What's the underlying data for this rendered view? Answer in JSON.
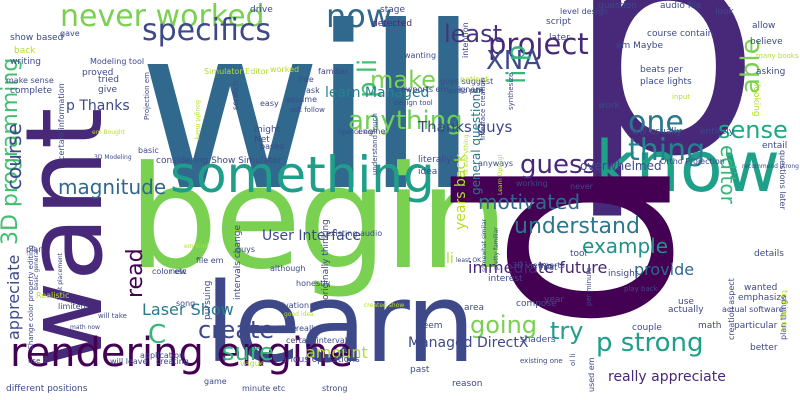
{
  "palette": [
    "#440154",
    "#482878",
    "#3e4989",
    "#31688e",
    "#26828e",
    "#1f9e89",
    "#35b779",
    "#6ece58",
    "#b5de2b",
    "#fde725"
  ],
  "words": [
    {
      "text": "will",
      "color": "#31688e"
    },
    {
      "text": "p",
      "color": "#482878"
    },
    {
      "text": "begin",
      "color": "#7ad151"
    },
    {
      "text": "want",
      "color": "#482878"
    },
    {
      "text": "learn",
      "color": "#3e4989"
    },
    {
      "text": "know",
      "color": "#1fa088"
    },
    {
      "text": "something",
      "color": "#1f9e89"
    },
    {
      "text": "p",
      "color": "#440154"
    },
    {
      "text": "rendering engine",
      "color": "#440154"
    },
    {
      "text": "never worked",
      "color": "#7ad151"
    },
    {
      "text": "specifics",
      "color": "#3e4989"
    },
    {
      "text": "now",
      "color": "#31688e"
    },
    {
      "text": "project",
      "color": "#482878"
    },
    {
      "text": "one",
      "color": "#2a788e"
    },
    {
      "text": "least",
      "color": "#46337e"
    },
    {
      "text": "XNA",
      "color": "#3e4989"
    },
    {
      "text": "able",
      "color": "#7ad151"
    },
    {
      "text": "make",
      "color": "#7ad151"
    },
    {
      "text": "li p",
      "color": "#35b779"
    },
    {
      "text": "anything",
      "color": "#6ece58"
    },
    {
      "text": "thing",
      "color": "#26828e"
    },
    {
      "text": "sense",
      "color": "#22a884"
    },
    {
      "text": "guess",
      "color": "#482878"
    },
    {
      "text": "editor",
      "color": "#35b779"
    },
    {
      "text": "3D programming",
      "color": "#44bf70"
    },
    {
      "text": "course",
      "color": "#3e4989"
    },
    {
      "text": "magnitude",
      "color": "#31688e"
    },
    {
      "text": "motivated",
      "color": "#31688e"
    },
    {
      "text": "understand",
      "color": "#2a788e"
    },
    {
      "text": "example",
      "color": "#21918c"
    },
    {
      "text": "create",
      "color": "#3e4989"
    },
    {
      "text": "going",
      "color": "#7ad151"
    },
    {
      "text": "try",
      "color": "#1f9e89"
    },
    {
      "text": "sure",
      "color": "#35b779"
    },
    {
      "text": "amount",
      "color": "#b5de2b"
    },
    {
      "text": "Laser Show",
      "color": "#2a788e"
    },
    {
      "text": "appreciate",
      "color": "#3e4989"
    },
    {
      "text": "read",
      "color": "#440154"
    },
    {
      "text": "provide",
      "color": "#31688e"
    },
    {
      "text": "p strong",
      "color": "#1f9e89"
    },
    {
      "text": "C",
      "color": "#35b779"
    },
    {
      "text": "p li",
      "color": "#44bf70"
    },
    {
      "text": "Thanks guys",
      "color": "#3e4989"
    },
    {
      "text": "learn Managed",
      "color": "#26828e"
    },
    {
      "text": "p Thanks",
      "color": "#3e4989"
    },
    {
      "text": "User Interface",
      "color": "#3e4989"
    },
    {
      "text": "immediate future",
      "color": "#482878"
    },
    {
      "text": "Managed DirectX",
      "color": "#3e4989"
    },
    {
      "text": "years back",
      "color": "#b5de2b"
    },
    {
      "text": "general questions",
      "color": "#2a788e"
    },
    {
      "text": "li",
      "color": "#b5de2b"
    },
    {
      "text": "really appreciate",
      "color": "#482878"
    },
    {
      "text": "overwhelmed",
      "color": "#3e4989"
    },
    {
      "text": "surely",
      "color": "#2a788e"
    },
    {
      "text": "show based",
      "color": "#3e4989"
    },
    {
      "text": "writing",
      "color": "#3e4989"
    },
    {
      "text": "complete",
      "color": "#3e4989"
    },
    {
      "text": "drive",
      "color": "#3e4989"
    },
    {
      "text": "stage",
      "color": "#3e4989"
    },
    {
      "text": "detected",
      "color": "#482878"
    },
    {
      "text": "question",
      "color": "#3e4989"
    },
    {
      "text": "audio file",
      "color": "#3e4989"
    },
    {
      "text": "look",
      "color": "#3e4989"
    },
    {
      "text": "level design",
      "color": "#3e4989"
    },
    {
      "text": "script",
      "color": "#3e4989"
    },
    {
      "text": "later",
      "color": "#3e4989"
    },
    {
      "text": "course contain",
      "color": "#3e4989"
    },
    {
      "text": "em Maybe",
      "color": "#3e4989"
    },
    {
      "text": "allow",
      "color": "#3e4989"
    },
    {
      "text": "believe",
      "color": "#3e4989"
    },
    {
      "text": "many books",
      "color": "#b5de2b"
    },
    {
      "text": "asking",
      "color": "#3e4989"
    },
    {
      "text": "beats per",
      "color": "#3e4989"
    },
    {
      "text": "place lights",
      "color": "#3e4989"
    },
    {
      "text": "input",
      "color": "#b5de2b"
    },
    {
      "text": "work",
      "color": "#3e4989"
    },
    {
      "text": "looking",
      "color": "#b5de2b"
    },
    {
      "text": "will usually",
      "color": "#3e4989"
    },
    {
      "text": "entirely",
      "color": "#3e4989"
    },
    {
      "text": "entail",
      "color": "#3e4989"
    },
    {
      "text": "Ortho Projection",
      "color": "#3e4989"
    },
    {
      "text": "recommend strong",
      "color": "#3e4989"
    },
    {
      "text": "questions later",
      "color": "#3e4989"
    },
    {
      "text": "details",
      "color": "#3e4989"
    },
    {
      "text": "wanted",
      "color": "#3e4989"
    },
    {
      "text": "emphasize",
      "color": "#3e4989"
    },
    {
      "text": "actual software",
      "color": "#3e4989"
    },
    {
      "text": "particular",
      "color": "#3e4989"
    },
    {
      "text": "better",
      "color": "#3e4989"
    },
    {
      "text": "creation aspect",
      "color": "#3e4989"
    },
    {
      "text": "plan things",
      "color": "#3e4989"
    },
    {
      "text": "turning ou",
      "color": "#b5de2b"
    },
    {
      "text": "gave",
      "color": "#3e4989"
    },
    {
      "text": "Modeling tool",
      "color": "#3e4989"
    },
    {
      "text": "proved",
      "color": "#3e4989"
    },
    {
      "text": "back",
      "color": "#b5de2b"
    },
    {
      "text": "make sense",
      "color": "#3e4989"
    },
    {
      "text": "tried",
      "color": "#3e4989"
    },
    {
      "text": "give",
      "color": "#3e4989"
    },
    {
      "text": "Simulator Editor",
      "color": "#b5de2b"
    },
    {
      "text": "familiar",
      "color": "#3e4989"
    },
    {
      "text": "wanting",
      "color": "#3e4989"
    },
    {
      "text": "guys suggest",
      "color": "#3e4989"
    },
    {
      "text": "audio part",
      "color": "#3e4989"
    },
    {
      "text": "intention",
      "color": "#3e4989"
    },
    {
      "text": "worked",
      "color": "#b5de2b"
    },
    {
      "text": "free",
      "color": "#3e4989"
    },
    {
      "text": "ask",
      "color": "#3e4989"
    },
    {
      "text": "scratch",
      "color": "#3e4989"
    },
    {
      "text": "viewports em",
      "color": "#3e4989"
    },
    {
      "text": "patient",
      "color": "#b5de2b"
    },
    {
      "text": "ignore",
      "color": "#3e4989"
    },
    {
      "text": "design tool",
      "color": "#3e4989"
    },
    {
      "text": "Interface creation",
      "color": "#3e4989"
    },
    {
      "text": "synthesize",
      "color": "#3e4989"
    },
    {
      "text": "easy",
      "color": "#3e4989"
    },
    {
      "text": "assume",
      "color": "#3e4989"
    },
    {
      "text": "ask follow",
      "color": "#3e4989"
    },
    {
      "text": "certain information",
      "color": "#3e4989"
    },
    {
      "text": "Bought many",
      "color": "#b5de2b"
    },
    {
      "text": "Projection em",
      "color": "#3e4989"
    },
    {
      "text": "em Bought",
      "color": "#b5de2b"
    },
    {
      "text": "3D Modeling",
      "color": "#3e4989"
    },
    {
      "text": "basic",
      "color": "#3e4989"
    },
    {
      "text": "might",
      "color": "#3e4989"
    },
    {
      "text": "Net",
      "color": "#3e4989"
    },
    {
      "text": "based",
      "color": "#3e4989"
    },
    {
      "text": "considering Show Simulator",
      "color": "#3e4989"
    },
    {
      "text": "OpenGL em",
      "color": "#3e4989"
    },
    {
      "text": "engine",
      "color": "#3e4989"
    },
    {
      "text": "understand much",
      "color": "#3e4989"
    },
    {
      "text": "literally",
      "color": "#3e4989"
    },
    {
      "text": "idea",
      "color": "#3e4989"
    },
    {
      "text": "anyways",
      "color": "#3e4989"
    },
    {
      "text": "fit everything",
      "color": "#b5de2b"
    },
    {
      "text": "Learn Opengl",
      "color": "#b5de2b"
    },
    {
      "text": "working",
      "color": "#3e4989"
    },
    {
      "text": "never",
      "color": "#3e4989"
    },
    {
      "text": "file em",
      "color": "#3e4989"
    },
    {
      "text": "guys",
      "color": "#3e4989"
    },
    {
      "text": "existing audio",
      "color": "#3e4989"
    },
    {
      "text": "plan",
      "color": "#3e4989"
    },
    {
      "text": "Change color property editing",
      "color": "#3e4989"
    },
    {
      "text": "basic general",
      "color": "#3e4989"
    },
    {
      "text": "light placement",
      "color": "#3e4989"
    },
    {
      "text": "intervals change",
      "color": "#3e4989"
    },
    {
      "text": "originally thinking",
      "color": "#3e4989"
    },
    {
      "text": "em kind",
      "color": "#b5de2b"
    },
    {
      "text": "color etc",
      "color": "#3e4989"
    },
    {
      "text": "new",
      "color": "#3e4989"
    },
    {
      "text": "although",
      "color": "#3e4989"
    },
    {
      "text": "Realistic",
      "color": "#b5de2b"
    },
    {
      "text": "honestly",
      "color": "#3e4989"
    },
    {
      "text": "motivation",
      "color": "#3e4989"
    },
    {
      "text": "limited",
      "color": "#3e4989"
    },
    {
      "text": "will take",
      "color": "#3e4989"
    },
    {
      "text": "math now",
      "color": "#3e4989"
    },
    {
      "text": "song",
      "color": "#3e4989"
    },
    {
      "text": "good idea",
      "color": "#b5de2b"
    },
    {
      "text": "meantime",
      "color": "#3e4989"
    },
    {
      "text": "pursuing",
      "color": "#3e4989"
    },
    {
      "text": "really",
      "color": "#3e4989"
    },
    {
      "text": "application",
      "color": "#3e4989"
    },
    {
      "text": "certain intervals",
      "color": "#3e4989"
    },
    {
      "text": "various operations",
      "color": "#3e4989"
    },
    {
      "text": "use C",
      "color": "#3e4989"
    },
    {
      "text": "will leave",
      "color": "#3e4989"
    },
    {
      "text": "creating",
      "color": "#3e4989"
    },
    {
      "text": "vague",
      "color": "#b5de2b"
    },
    {
      "text": "game",
      "color": "#3e4989"
    },
    {
      "text": "minute etc",
      "color": "#3e4989"
    },
    {
      "text": "strong",
      "color": "#3e4989"
    },
    {
      "text": "different positions",
      "color": "#3e4989"
    },
    {
      "text": "created show",
      "color": "#b5de2b"
    },
    {
      "text": "start",
      "color": "#3e4989"
    },
    {
      "text": "compose",
      "color": "#3e4989"
    },
    {
      "text": "area",
      "color": "#3e4989"
    },
    {
      "text": "year",
      "color": "#3e4989"
    },
    {
      "text": "seem",
      "color": "#3e4989"
    },
    {
      "text": "past",
      "color": "#3e4989"
    },
    {
      "text": "shaders",
      "color": "#3e4989"
    },
    {
      "text": "reason",
      "color": "#3e4989"
    },
    {
      "text": "existing one",
      "color": "#3e4989"
    },
    {
      "text": "ol li",
      "color": "#3e4989"
    },
    {
      "text": "used em",
      "color": "#3e4989"
    },
    {
      "text": "math",
      "color": "#3e4989"
    },
    {
      "text": "couple",
      "color": "#3e4989"
    },
    {
      "text": "actually",
      "color": "#3e4989"
    },
    {
      "text": "use",
      "color": "#3e4989"
    },
    {
      "text": "play back",
      "color": "#3e4989"
    },
    {
      "text": "insight",
      "color": "#3e4989"
    },
    {
      "text": "per minute",
      "color": "#3e4989"
    },
    {
      "text": "first",
      "color": "#3e4989"
    },
    {
      "text": "tool",
      "color": "#3e4989"
    },
    {
      "text": "interest",
      "color": "#3e4989"
    },
    {
      "text": "pretty familiar",
      "color": "#3e4989"
    },
    {
      "text": "somewhat similar",
      "color": "#3e4989"
    },
    {
      "text": "least OK",
      "color": "#3e4989"
    },
    {
      "text": "3D viewports",
      "color": "#3e4989"
    }
  ]
}
